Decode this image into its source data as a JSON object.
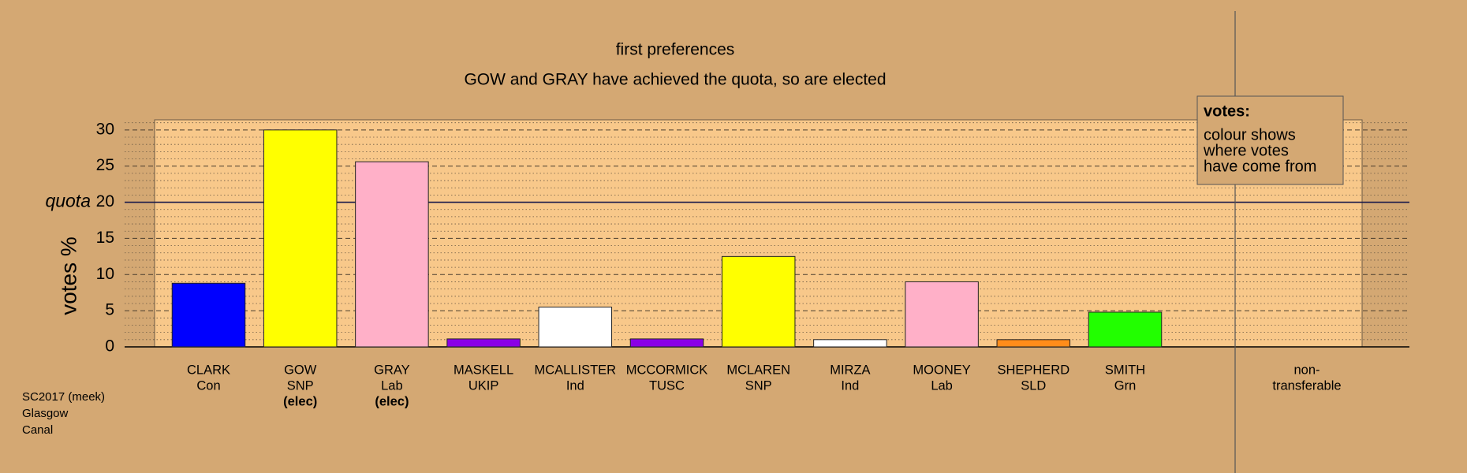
{
  "chart_data": {
    "type": "bar",
    "title": "first preferences",
    "subtitle": "GOW and GRAY have achieved the quota, so are elected",
    "ylabel": "votes %",
    "categories": [
      "CLARK",
      "GOW",
      "GRAY",
      "MASKELL",
      "MCALLISTER",
      "MCCORMICK",
      "MCLAREN",
      "MIRZA",
      "MOONEY",
      "SHEPHERD",
      "SMITH",
      "non-"
    ],
    "parties": [
      "Con",
      "SNP",
      "Lab",
      "UKIP",
      "Ind",
      "TUSC",
      "SNP",
      "Ind",
      "Lab",
      "SLD",
      "Grn",
      "transferable"
    ],
    "status": [
      null,
      "(elec)",
      "(elec)",
      null,
      null,
      null,
      null,
      null,
      null,
      null,
      null,
      null
    ],
    "values": [
      8.8,
      30.0,
      25.6,
      1.1,
      5.5,
      1.1,
      12.5,
      1.0,
      9.0,
      1.0,
      4.8,
      null
    ],
    "colors": [
      "#0000ff",
      "#ffff00",
      "#ffb0c8",
      "#8a00e6",
      "#ffffff",
      "#8a00e6",
      "#ffff00",
      "#ffffff",
      "#ffb0c8",
      "#ff8c1a",
      "#22ff00",
      null
    ],
    "quota": {
      "value": 20,
      "label": "quota"
    },
    "ylim": [
      0,
      31.4
    ],
    "yticks": [
      0,
      5,
      10,
      15,
      20,
      25,
      30
    ],
    "minor_yticks": [
      1,
      2,
      3,
      4,
      6,
      7,
      8,
      9,
      11,
      12,
      13,
      14,
      16,
      17,
      18,
      19,
      21,
      22,
      23,
      24,
      26,
      27,
      28,
      29,
      31
    ],
    "legend": {
      "title": "votes:",
      "lines": [
        "colour shows",
        "where votes",
        "have come from"
      ]
    },
    "footnote": [
      "SC2017 (meek)",
      "Glasgow",
      "Canal"
    ]
  }
}
